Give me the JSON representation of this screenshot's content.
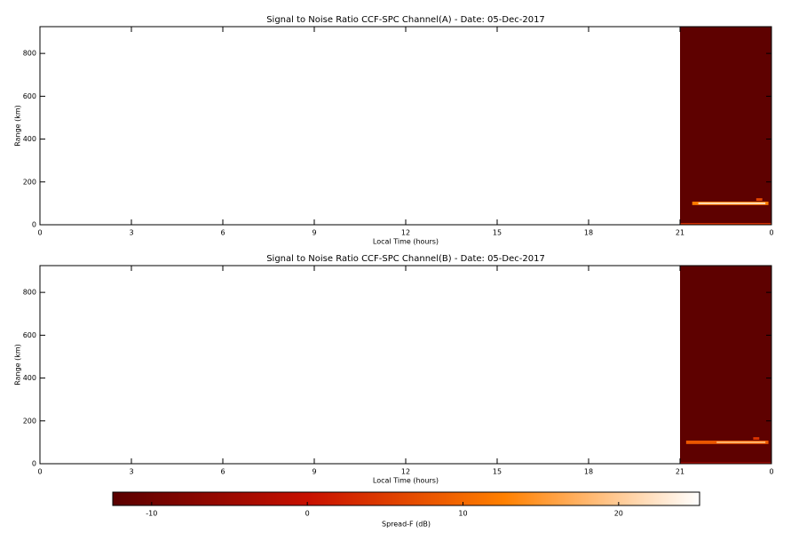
{
  "chart_data": [
    {
      "type": "heatmap",
      "title": "Signal to Noise Ratio CCF-SPC Channel(A) - Date: 05-Dec-2017",
      "x_label": "Local Time (hours)",
      "y_label": "Range (km)",
      "xlim": [
        0,
        24
      ],
      "xticks": [
        0,
        3,
        6,
        9,
        12,
        15,
        18,
        21,
        {
          "value": 24,
          "label": "0"
        }
      ],
      "ylim": [
        0,
        925
      ],
      "yticks": [
        0,
        200,
        400,
        600,
        800
      ],
      "cells": [
        {
          "x0": 21,
          "x1": 24,
          "y0": 0,
          "y1": 925,
          "value": -12
        },
        {
          "x0": 21.4,
          "x1": 23.9,
          "y0": 92,
          "y1": 108,
          "value": 12
        },
        {
          "x0": 21.6,
          "x1": 23.8,
          "y0": 96,
          "y1": 104,
          "value": 22
        },
        {
          "x0": 21,
          "x1": 24,
          "y0": 0,
          "y1": 8,
          "value": 4
        },
        {
          "x0": 23.5,
          "x1": 23.7,
          "y0": 112,
          "y1": 124,
          "value": 6
        }
      ]
    },
    {
      "type": "heatmap",
      "title": "Signal to Noise Ratio CCF-SPC Channel(B) - Date: 05-Dec-2017",
      "x_label": "Local Time (hours)",
      "y_label": "Range (km)",
      "xlim": [
        0,
        24
      ],
      "xticks": [
        0,
        3,
        6,
        9,
        12,
        15,
        18,
        21,
        {
          "value": 24,
          "label": "0"
        }
      ],
      "ylim": [
        0,
        925
      ],
      "yticks": [
        0,
        200,
        400,
        600,
        800
      ],
      "cells": [
        {
          "x0": 21,
          "x1": 24,
          "y0": 0,
          "y1": 925,
          "value": -12
        },
        {
          "x0": 21.2,
          "x1": 23.9,
          "y0": 92,
          "y1": 108,
          "value": 8
        },
        {
          "x0": 22.2,
          "x1": 23.8,
          "y0": 96,
          "y1": 104,
          "value": 18
        },
        {
          "x0": 21,
          "x1": 24,
          "y0": 0,
          "y1": 6,
          "value": 0
        },
        {
          "x0": 23.4,
          "x1": 23.6,
          "y0": 112,
          "y1": 124,
          "value": 4
        }
      ]
    }
  ],
  "colorbar": {
    "label": "Spread-F (dB)",
    "clim": [
      -12.5,
      25.2
    ],
    "ticks": [
      -10,
      0,
      10,
      20
    ],
    "colors": [
      "#5a0000",
      "#c81000",
      "#ff8000",
      "#ffffff"
    ]
  }
}
